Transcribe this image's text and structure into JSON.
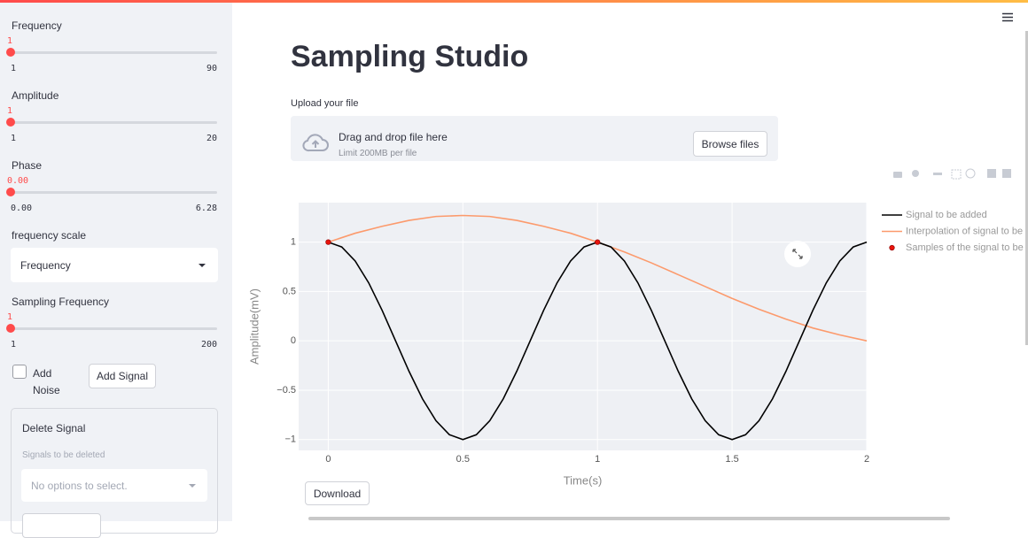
{
  "sidebar": {
    "sliders": [
      {
        "label": "Frequency",
        "value": 1,
        "min": 1,
        "max": 90
      },
      {
        "label": "Amplitude",
        "value": 1,
        "min": 1,
        "max": 20
      },
      {
        "label": "Phase",
        "value": "0.00",
        "min": "0.00",
        "max": "6.28"
      },
      {
        "label": "Sampling Frequency",
        "value": 1,
        "min": 1,
        "max": 200
      }
    ],
    "frequency_scale": {
      "label": "frequency scale",
      "selected": "Frequency"
    },
    "add_noise": "Add Noise",
    "add_signal_button": "Add Signal",
    "delete_signal": {
      "title": "Delete Signal",
      "label": "Signals to be deleted",
      "placeholder": "No options to select."
    }
  },
  "title": "Sampling Studio",
  "uploader": {
    "label": "Upload your file",
    "prompt": "Drag and drop file here",
    "limit": "Limit 200MB per file",
    "button": "Browse files"
  },
  "chart_data": {
    "type": "line",
    "x_label": "Time(s)",
    "y_label": "Amplitude(mV)",
    "xlim": [
      -0.11,
      2
    ],
    "ylim": [
      -1.11,
      1.4
    ],
    "xticks": [
      0,
      0.5,
      1,
      1.5,
      2
    ],
    "yticks": [
      {
        "value": -1,
        "label": "−1"
      },
      {
        "value": -0.5,
        "label": "−0.5"
      },
      0,
      0.5,
      1
    ],
    "grid": true,
    "series": [
      {
        "name": "Signal to be added",
        "color": "#000000",
        "mode": "line",
        "x": [
          0,
          0.05,
          0.1,
          0.15,
          0.2,
          0.25,
          0.3,
          0.35,
          0.4,
          0.45,
          0.5,
          0.55,
          0.6,
          0.65,
          0.7,
          0.75,
          0.8,
          0.85,
          0.9,
          0.95,
          1,
          1.05,
          1.1,
          1.15,
          1.2,
          1.25,
          1.3,
          1.35,
          1.4,
          1.45,
          1.5,
          1.55,
          1.6,
          1.65,
          1.7,
          1.75,
          1.8,
          1.85,
          1.9,
          1.95,
          2
        ],
        "values": [
          1,
          0.951,
          0.809,
          0.588,
          0.309,
          0,
          -0.309,
          -0.588,
          -0.809,
          -0.951,
          -1,
          -0.951,
          -0.809,
          -0.588,
          -0.309,
          0,
          0.309,
          0.588,
          0.809,
          0.951,
          1,
          0.951,
          0.809,
          0.588,
          0.309,
          0,
          -0.309,
          -0.588,
          -0.809,
          -0.951,
          -1,
          -0.951,
          -0.809,
          -0.588,
          -0.309,
          0,
          0.309,
          0.588,
          0.809,
          0.951,
          1
        ]
      },
      {
        "name": "Interpolation of signal to be",
        "color": "#fc9a6c",
        "mode": "line",
        "x": [
          0,
          0.1,
          0.2,
          0.3,
          0.4,
          0.5,
          0.6,
          0.7,
          0.8,
          0.9,
          1,
          1.1,
          1.2,
          1.3,
          1.4,
          1.5,
          1.6,
          1.7,
          1.8,
          1.9,
          2
        ],
        "values": [
          1,
          1.09,
          1.16,
          1.22,
          1.26,
          1.27,
          1.26,
          1.22,
          1.16,
          1.09,
          1,
          0.9,
          0.79,
          0.67,
          0.55,
          0.43,
          0.32,
          0.22,
          0.13,
          0.06,
          0
        ]
      },
      {
        "name": "Samples of the signal to be",
        "color": "#e8140c",
        "mode": "markers",
        "x": [
          0,
          1
        ],
        "values": [
          1,
          1
        ]
      }
    ]
  },
  "download_button": "Download"
}
